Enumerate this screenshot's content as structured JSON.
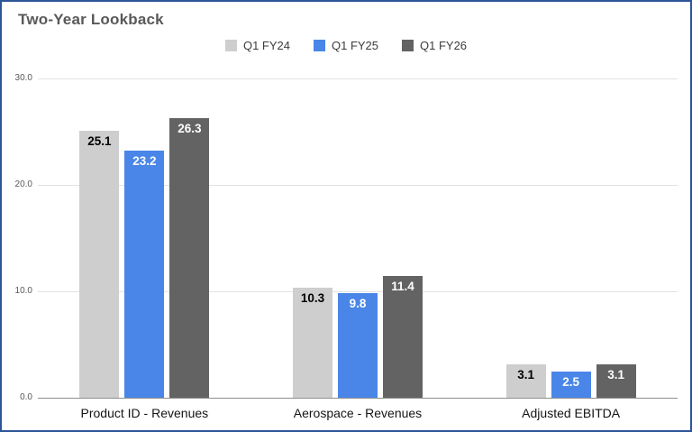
{
  "title": "Two-Year Lookback",
  "chart_data": {
    "type": "bar",
    "title": "Two-Year Lookback",
    "categories": [
      "Product ID - Revenues",
      "Aerospace - Revenues",
      "Adjusted EBITDA"
    ],
    "series": [
      {
        "name": "Q1 FY24",
        "color": "#cecece",
        "label_color": "#000000",
        "values": [
          25.1,
          10.3,
          3.1
        ]
      },
      {
        "name": "Q1 FY25",
        "color": "#4a86e8",
        "label_color": "#ffffff",
        "values": [
          23.2,
          9.8,
          2.5
        ]
      },
      {
        "name": "Q1 FY26",
        "color": "#636363",
        "label_color": "#ffffff",
        "values": [
          26.3,
          11.4,
          3.1
        ]
      }
    ],
    "xlabel": "",
    "ylabel": "",
    "ylim": [
      0,
      30
    ],
    "yticks": [
      "0.0",
      "10.0",
      "20.0",
      "30.0"
    ],
    "grid": true,
    "legend_position": "top",
    "border_color": "#2c5597"
  }
}
